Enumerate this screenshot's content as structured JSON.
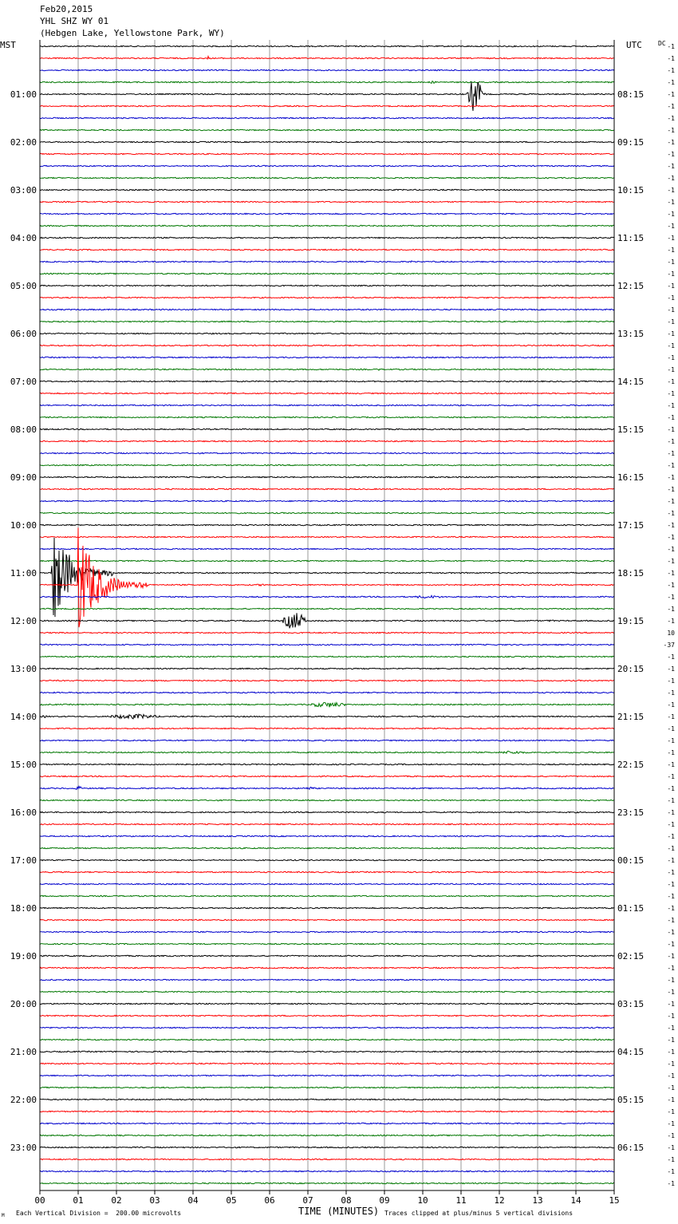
{
  "header": {
    "date": "Feb20,2015",
    "station": "YHL SHZ WY 01",
    "location": "(Hebgen Lake, Yellowstone Park, WY)",
    "left_zone": "MST",
    "right_zone": "UTC",
    "dc_label": "DC"
  },
  "footer": {
    "scale_note": "Each Vertical Division =  200.00 microvolts",
    "xlabel": "TIME (MINUTES)",
    "clip_note": "Traces clipped at plus/minus 5 vertical divisions",
    "corner_mark": "M"
  },
  "chart_data": {
    "type": "line",
    "xlabel": "TIME (MINUTES)",
    "xlim": [
      0,
      15
    ],
    "x_ticks": [
      "00",
      "01",
      "02",
      "03",
      "04",
      "05",
      "06",
      "07",
      "08",
      "09",
      "10",
      "11",
      "12",
      "13",
      "14",
      "15"
    ],
    "trace_count": 96,
    "trace_minutes": 15,
    "colors": [
      "#000000",
      "#ff0000",
      "#0000cc",
      "#007700"
    ],
    "left_hour_labels": [
      "01:00",
      "02:00",
      "03:00",
      "04:00",
      "05:00",
      "06:00",
      "07:00",
      "08:00",
      "09:00",
      "10:00",
      "11:00",
      "12:00",
      "13:00",
      "14:00",
      "15:00",
      "16:00",
      "17:00",
      "18:00",
      "19:00",
      "20:00",
      "21:00",
      "22:00",
      "23:00"
    ],
    "right_hour_labels": [
      "08:15",
      "09:15",
      "10:15",
      "11:15",
      "12:15",
      "13:15",
      "14:15",
      "15:15",
      "16:15",
      "17:15",
      "18:15",
      "19:15",
      "20:15",
      "21:15",
      "22:15",
      "23:15",
      "00:15",
      "01:15",
      "02:15",
      "03:15",
      "04:15",
      "05:15",
      "06:15"
    ],
    "dc_offsets": [
      "-1",
      "-1",
      "-1",
      "-1",
      "-1",
      "-1",
      "-1",
      "-1",
      "-1",
      "-1",
      "-1",
      "-1",
      "-1",
      "-1",
      "-1",
      "-1",
      "-1",
      "-1",
      "-1",
      "-1",
      "-1",
      "-1",
      "-1",
      "-1",
      "-1",
      "-1",
      "-1",
      "-1",
      "-1",
      "-1",
      "-1",
      "-1",
      "-1",
      "-1",
      "-1",
      "-1",
      "-1",
      "-1",
      "-1",
      "-1",
      "-1",
      "-1",
      "-1",
      "-1",
      "-1",
      "-1",
      "-1",
      "-1",
      "-1",
      "10",
      "-37",
      "-1",
      "-1",
      "-1",
      "-1",
      "-1",
      "-1",
      "-1",
      "-1",
      "-1",
      "-1",
      "-1",
      "-1",
      "-1",
      "-1",
      "-1",
      "-1",
      "-1",
      "-1",
      "-1",
      "-1",
      "-1",
      "-1",
      "-1",
      "-1",
      "-1",
      "-1",
      "-1",
      "-1",
      "-1",
      "-1",
      "-1",
      "-1",
      "-1",
      "-1",
      "-1",
      "-1",
      "-1",
      "-1",
      "-1",
      "-1",
      "-1",
      "-1",
      "-1",
      "-1",
      "-1"
    ],
    "events": [
      {
        "trace": 1,
        "minute": 4.35,
        "duration": 0.08,
        "amplitude": 0.5
      },
      {
        "trace": 3,
        "minute": 10.1,
        "duration": 0.4,
        "amplitude": 0.2
      },
      {
        "trace": 4,
        "minute": 11.15,
        "duration": 0.55,
        "amplitude": 3.0
      },
      {
        "trace": 18,
        "minute": 9.6,
        "duration": 0.2,
        "amplitude": 0.2
      },
      {
        "trace": 27,
        "minute": 8.8,
        "duration": 0.1,
        "amplitude": 0.3
      },
      {
        "trace": 44,
        "minute": 0.3,
        "duration": 1.6,
        "amplitude": 10.0
      },
      {
        "trace": 45,
        "minute": 1.0,
        "duration": 1.8,
        "amplitude": 10.0
      },
      {
        "trace": 45,
        "minute": 5.6,
        "duration": 0.6,
        "amplitude": 0.2
      },
      {
        "trace": 45,
        "minute": 10.6,
        "duration": 0.15,
        "amplitude": 0.6
      },
      {
        "trace": 46,
        "minute": 9.6,
        "duration": 1.4,
        "amplitude": 0.25
      },
      {
        "trace": 48,
        "minute": 6.3,
        "duration": 0.9,
        "amplitude": 1.5
      },
      {
        "trace": 48,
        "minute": 2.6,
        "duration": 0.8,
        "amplitude": 0.15
      },
      {
        "trace": 48,
        "minute": 13.1,
        "duration": 0.6,
        "amplitude": 0.15
      },
      {
        "trace": 55,
        "minute": 6.9,
        "duration": 1.6,
        "amplitude": 0.45
      },
      {
        "trace": 56,
        "minute": 0.0,
        "duration": 0.3,
        "amplitude": 0.2
      },
      {
        "trace": 56,
        "minute": 1.6,
        "duration": 2.2,
        "amplitude": 0.4
      },
      {
        "trace": 59,
        "minute": 11.8,
        "duration": 1.4,
        "amplitude": 0.25
      },
      {
        "trace": 62,
        "minute": 0.9,
        "duration": 0.3,
        "amplitude": 0.35
      },
      {
        "trace": 62,
        "minute": 6.8,
        "duration": 0.6,
        "amplitude": 0.25
      }
    ]
  }
}
